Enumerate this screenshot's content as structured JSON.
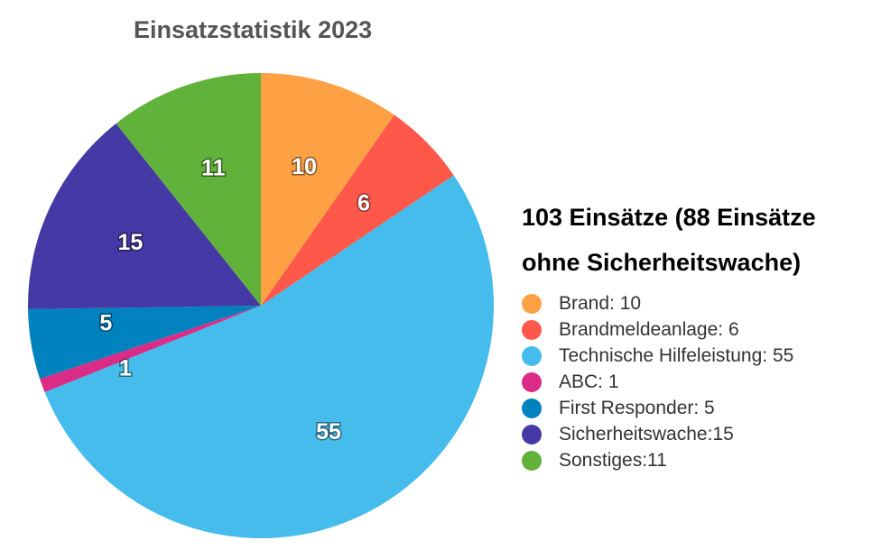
{
  "chart_data": {
    "type": "pie",
    "title": "Einsatzstatistik 2023",
    "legend_title": "103 Einsätze (88 Einsätze ohne Sicherheitswache)",
    "legend_position": "right",
    "start": "top",
    "direction": "clockwise",
    "slices": [
      {
        "label": "Brand: 10",
        "value": 10,
        "color": "#FDA144"
      },
      {
        "label": "Brandmeldeanlage: 6",
        "value": 6,
        "color": "#FD584A"
      },
      {
        "label": "Technische Hilfeleistung: 55",
        "value": 55,
        "color": "#45BCEB"
      },
      {
        "label": "ABC: 1",
        "value": 1,
        "color": "#DA2C86"
      },
      {
        "label": "First Responder: 5",
        "value": 5,
        "color": "#0082BF"
      },
      {
        "label": "Sicherheitswache:15",
        "value": 15,
        "color": "#4539A5"
      },
      {
        "label": "Sonstiges:11",
        "value": 11,
        "color": "#61B23A"
      }
    ]
  }
}
